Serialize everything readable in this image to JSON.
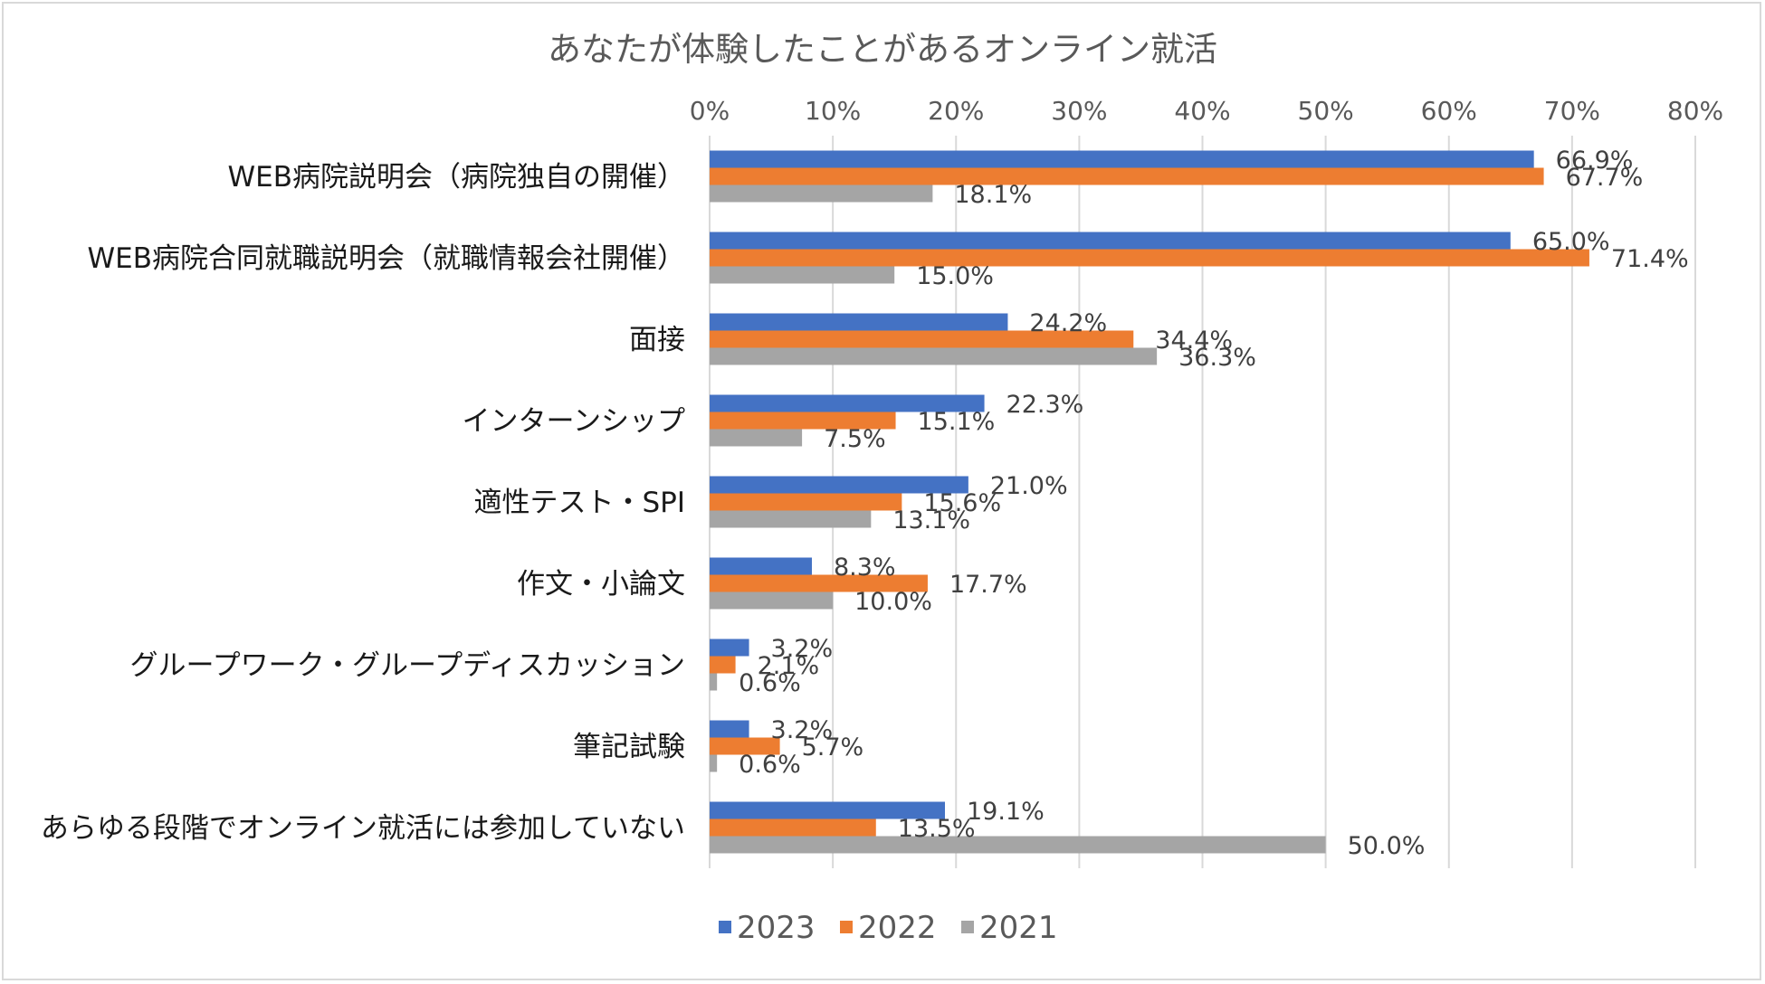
{
  "chart_data": {
    "type": "bar",
    "orientation": "horizontal",
    "title": "あなたが体験したことがあるオンライン就活",
    "xlabel": "",
    "ylabel": "",
    "xlim": [
      0,
      80
    ],
    "xticks": [
      "0%",
      "10%",
      "20%",
      "30%",
      "40%",
      "50%",
      "60%",
      "70%",
      "80%"
    ],
    "xtick_values": [
      0,
      10,
      20,
      30,
      40,
      50,
      60,
      70,
      80
    ],
    "grid": true,
    "legend_position": "bottom",
    "categories": [
      "WEB病院説明会（病院独自の開催）",
      "WEB病院合同就職説明会（就職情報会社開催）",
      "面接",
      "インターンシップ",
      "適性テスト・SPI",
      "作文・小論文",
      "グループワーク・グループディスカッション",
      "筆記試験",
      "あらゆる段階でオンライン就活には参加していない"
    ],
    "series": [
      {
        "name": "2023",
        "color": "#4472c4",
        "values": [
          66.9,
          65.0,
          24.2,
          22.3,
          21.0,
          8.3,
          3.2,
          3.2,
          19.1
        ],
        "labels": [
          "66.9%",
          "65.0%",
          "24.2%",
          "22.3%",
          "21.0%",
          "8.3%",
          "3.2%",
          "3.2%",
          "19.1%"
        ]
      },
      {
        "name": "2022",
        "color": "#ed7d31",
        "values": [
          67.7,
          71.4,
          34.4,
          15.1,
          15.6,
          17.7,
          2.1,
          5.7,
          13.5
        ],
        "labels": [
          "67.7%",
          "71.4%",
          "34.4%",
          "15.1%",
          "15.6%",
          "17.7%",
          "2.1%",
          "5.7%",
          "13.5%"
        ]
      },
      {
        "name": "2021",
        "color": "#a5a5a5",
        "values": [
          18.1,
          15.0,
          36.3,
          7.5,
          13.1,
          10.0,
          0.6,
          0.6,
          50.0
        ],
        "labels": [
          "18.1%",
          "15.0%",
          "36.3%",
          "7.5%",
          "13.1%",
          "10.0%",
          "0.6%",
          "0.6%",
          "50.0%"
        ]
      }
    ]
  }
}
